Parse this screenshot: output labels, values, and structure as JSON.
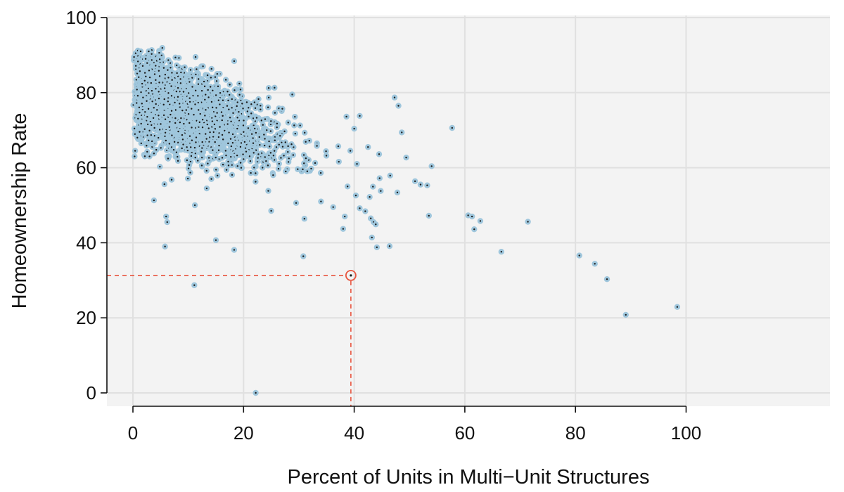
{
  "chart_data": {
    "type": "scatter",
    "title": "",
    "xlabel": "Percent of Units in Multi−Unit Structures",
    "ylabel": "Homeownership Rate",
    "xlim": [
      -4,
      101
    ],
    "ylim": [
      -4,
      101
    ],
    "x_ticks": [
      0,
      20,
      40,
      60,
      80,
      100
    ],
    "y_ticks": [
      0,
      20,
      40,
      60,
      80,
      100
    ],
    "x_tick_labels": [
      "0",
      "20",
      "40",
      "60",
      "80",
      "100"
    ],
    "y_tick_labels": [
      "0",
      "20",
      "40",
      "60",
      "80",
      "100"
    ],
    "grid": true,
    "legend": "none",
    "colors": {
      "panel_background": "#f3f3f3",
      "grid": "#e0e0e0",
      "point_halo": "#9fc6dc",
      "point_center": "#1a1a1a",
      "highlight": "#e8553f"
    },
    "highlight_point": {
      "x": 39.4,
      "y": 31.3
    },
    "dense_cluster": {
      "approx_count": 2700,
      "seed": 7,
      "x_range": [
        0,
        45
      ],
      "y_range": [
        45,
        92
      ],
      "description_mode": "cloud"
    },
    "points": [
      [
        0.2,
        89.5
      ],
      [
        0.5,
        90.5
      ],
      [
        0.9,
        91.2
      ],
      [
        1.4,
        91.0
      ],
      [
        2.3,
        89.0
      ],
      [
        0.3,
        63.0
      ],
      [
        0.4,
        64.5
      ],
      [
        0.8,
        68.0
      ],
      [
        1.5,
        66.5
      ],
      [
        3.0,
        63.0
      ],
      [
        3.8,
        51.3
      ],
      [
        5.7,
        55.6
      ],
      [
        6.0,
        47.0
      ],
      [
        6.2,
        45.5
      ],
      [
        5.8,
        39.0
      ],
      [
        7.0,
        56.8
      ],
      [
        11.2,
        50.0
      ],
      [
        11.1,
        28.7
      ],
      [
        15.0,
        40.7
      ],
      [
        18.3,
        38.1
      ],
      [
        18.3,
        88.4
      ],
      [
        22.2,
        0.0
      ],
      [
        30.8,
        36.4
      ],
      [
        25.6,
        81.3
      ],
      [
        28.8,
        79.5
      ],
      [
        25.0,
        48.5
      ],
      [
        31.0,
        46.4
      ],
      [
        38.3,
        47.0
      ],
      [
        38.0,
        43.7
      ],
      [
        41.0,
        49.2
      ],
      [
        42.0,
        48.4
      ],
      [
        43.0,
        46.5
      ],
      [
        43.5,
        45.5
      ],
      [
        43.9,
        44.9
      ],
      [
        43.2,
        41.4
      ],
      [
        44.1,
        38.8
      ],
      [
        46.4,
        39.1
      ],
      [
        47.3,
        78.7
      ],
      [
        48.0,
        76.5
      ],
      [
        48.6,
        69.4
      ],
      [
        49.4,
        62.7
      ],
      [
        46.5,
        57.9
      ],
      [
        47.8,
        53.4
      ],
      [
        51.0,
        56.4
      ],
      [
        52.0,
        55.5
      ],
      [
        53.2,
        55.3
      ],
      [
        53.5,
        47.2
      ],
      [
        54.0,
        60.4
      ],
      [
        57.7,
        70.6
      ],
      [
        60.6,
        47.3
      ],
      [
        61.3,
        47.0
      ],
      [
        61.7,
        43.6
      ],
      [
        62.8,
        45.8
      ],
      [
        66.6,
        37.6
      ],
      [
        71.4,
        45.6
      ],
      [
        80.7,
        36.6
      ],
      [
        83.5,
        34.4
      ],
      [
        85.7,
        30.3
      ],
      [
        89.1,
        20.8
      ],
      [
        98.4,
        22.9
      ],
      [
        38.6,
        73.6
      ],
      [
        40.0,
        70.4
      ],
      [
        41.0,
        73.8
      ],
      [
        39.3,
        64.5
      ],
      [
        42.5,
        65.5
      ],
      [
        40.5,
        61.0
      ],
      [
        44.5,
        63.6
      ],
      [
        38.8,
        55.0
      ],
      [
        40.3,
        52.6
      ],
      [
        42.8,
        52.2
      ],
      [
        44.6,
        57.2
      ],
      [
        44.8,
        53.8
      ],
      [
        36.2,
        49.5
      ],
      [
        34.0,
        51.0
      ],
      [
        29.5,
        50.6
      ]
    ]
  }
}
